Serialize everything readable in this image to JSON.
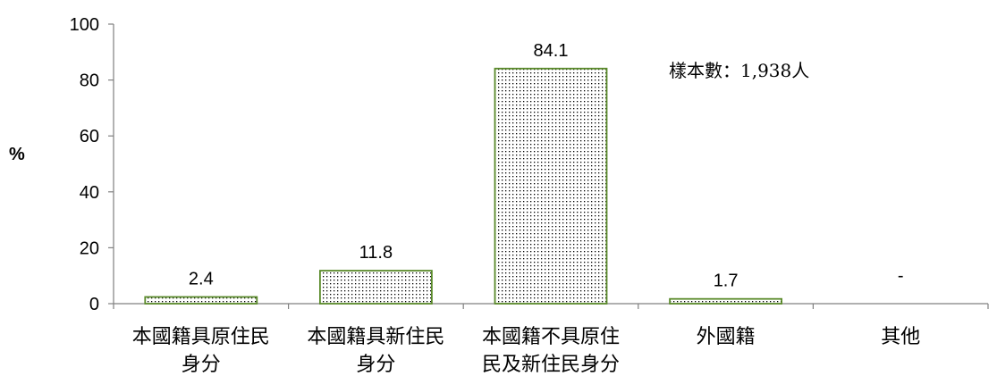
{
  "chart_data": {
    "type": "bar",
    "categories": [
      [
        "本國籍具原住民",
        "身分"
      ],
      [
        "本國籍具新住民",
        "身分"
      ],
      [
        "本國籍不具原住",
        "民及新住民身分"
      ],
      [
        "外國籍"
      ],
      [
        "其他"
      ]
    ],
    "values": [
      2.4,
      11.8,
      84.1,
      1.7,
      null
    ],
    "data_labels": [
      "2.4",
      "11.8",
      "84.1",
      "1.7",
      "-"
    ],
    "ylabel": "%",
    "ylim": [
      0,
      100
    ],
    "yticks": [
      0,
      20,
      40,
      60,
      80,
      100
    ],
    "annotation": "樣本數：1,938人",
    "bar_pattern": "dotted",
    "colors": {
      "bar_border": "#5a8a2a",
      "dot": "#000000",
      "axis": "#808080"
    },
    "grid": false
  }
}
